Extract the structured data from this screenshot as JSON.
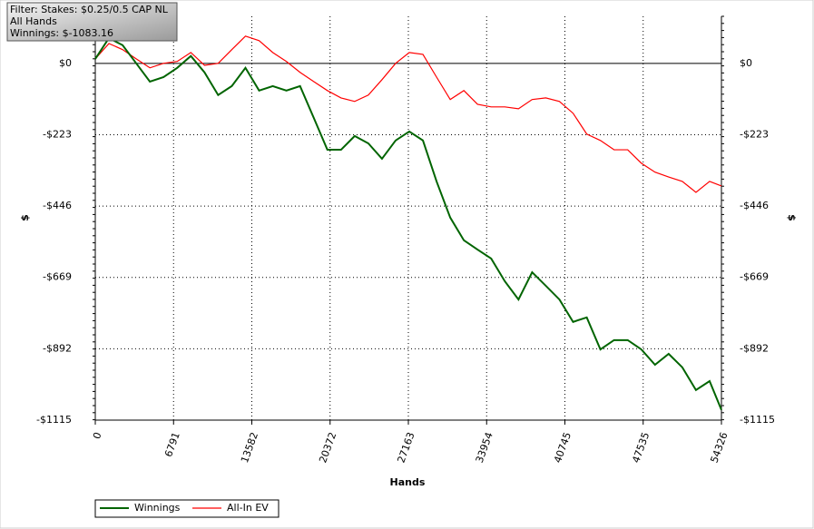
{
  "chart_data": {
    "type": "line",
    "annotations": [
      "Filter: Stakes: $0.25/0.5 CAP NL",
      "All Hands",
      "Winnings: $-1083.16"
    ],
    "x_label": "Hands",
    "y_label": "$",
    "x": [
      0,
      1184,
      2369,
      3553,
      4738,
      5922,
      7106,
      8291,
      9475,
      10660,
      11844,
      13029,
      14213,
      15398,
      16582,
      17767,
      18951,
      20136,
      21320,
      22505,
      23689,
      24874,
      26058,
      27242,
      28427,
      29611,
      30796,
      31980,
      33165,
      34349,
      35533,
      36718,
      37902,
      39087,
      40271,
      41455,
      42640,
      43824,
      45009,
      46193,
      47377,
      48562,
      49746,
      50931,
      52115,
      53299,
      54326
    ],
    "series": [
      {
        "name": "Winnings",
        "color": "#006400",
        "values": [
          14,
          79,
          57,
          0,
          -57,
          -43,
          -14,
          23,
          -28,
          -99,
          -71,
          -14,
          -85,
          -71,
          -85,
          -71,
          -170,
          -270,
          -270,
          -227,
          -250,
          -298,
          -241,
          -213,
          -241,
          -369,
          -482,
          -553,
          -582,
          -610,
          -681,
          -738,
          -653,
          -695,
          -738,
          -808,
          -794,
          -894,
          -865,
          -865,
          -894,
          -942,
          -908,
          -950,
          -1021,
          -993,
          -1083
        ]
      },
      {
        "name": "All-In EV",
        "color": "#ff0000",
        "values": [
          14,
          62,
          43,
          14,
          -14,
          0,
          6,
          34,
          -6,
          0,
          43,
          85,
          71,
          34,
          6,
          -28,
          -57,
          -85,
          -108,
          -119,
          -99,
          -51,
          0,
          34,
          28,
          -43,
          -113,
          -85,
          -128,
          -136,
          -136,
          -142,
          -113,
          -108,
          -119,
          -156,
          -221,
          -241,
          -270,
          -270,
          -312,
          -340,
          -355,
          -369,
          -403,
          -369,
          -383
        ]
      }
    ],
    "xlim": [
      0,
      54326
    ],
    "xticks": [
      0,
      6791,
      13582,
      20372,
      27163,
      33954,
      40745,
      47535,
      54326
    ],
    "ylim": [
      -1115,
      147
    ],
    "yticks": [
      {
        "value": 0,
        "label": "$0"
      },
      {
        "value": -223,
        "label": "-$223"
      },
      {
        "value": -446,
        "label": "-$446"
      },
      {
        "value": -669,
        "label": "-$669"
      },
      {
        "value": -892,
        "label": "-$892"
      },
      {
        "value": -1115,
        "label": "-$1115"
      }
    ],
    "grid": true,
    "legend": "bottom-left"
  }
}
